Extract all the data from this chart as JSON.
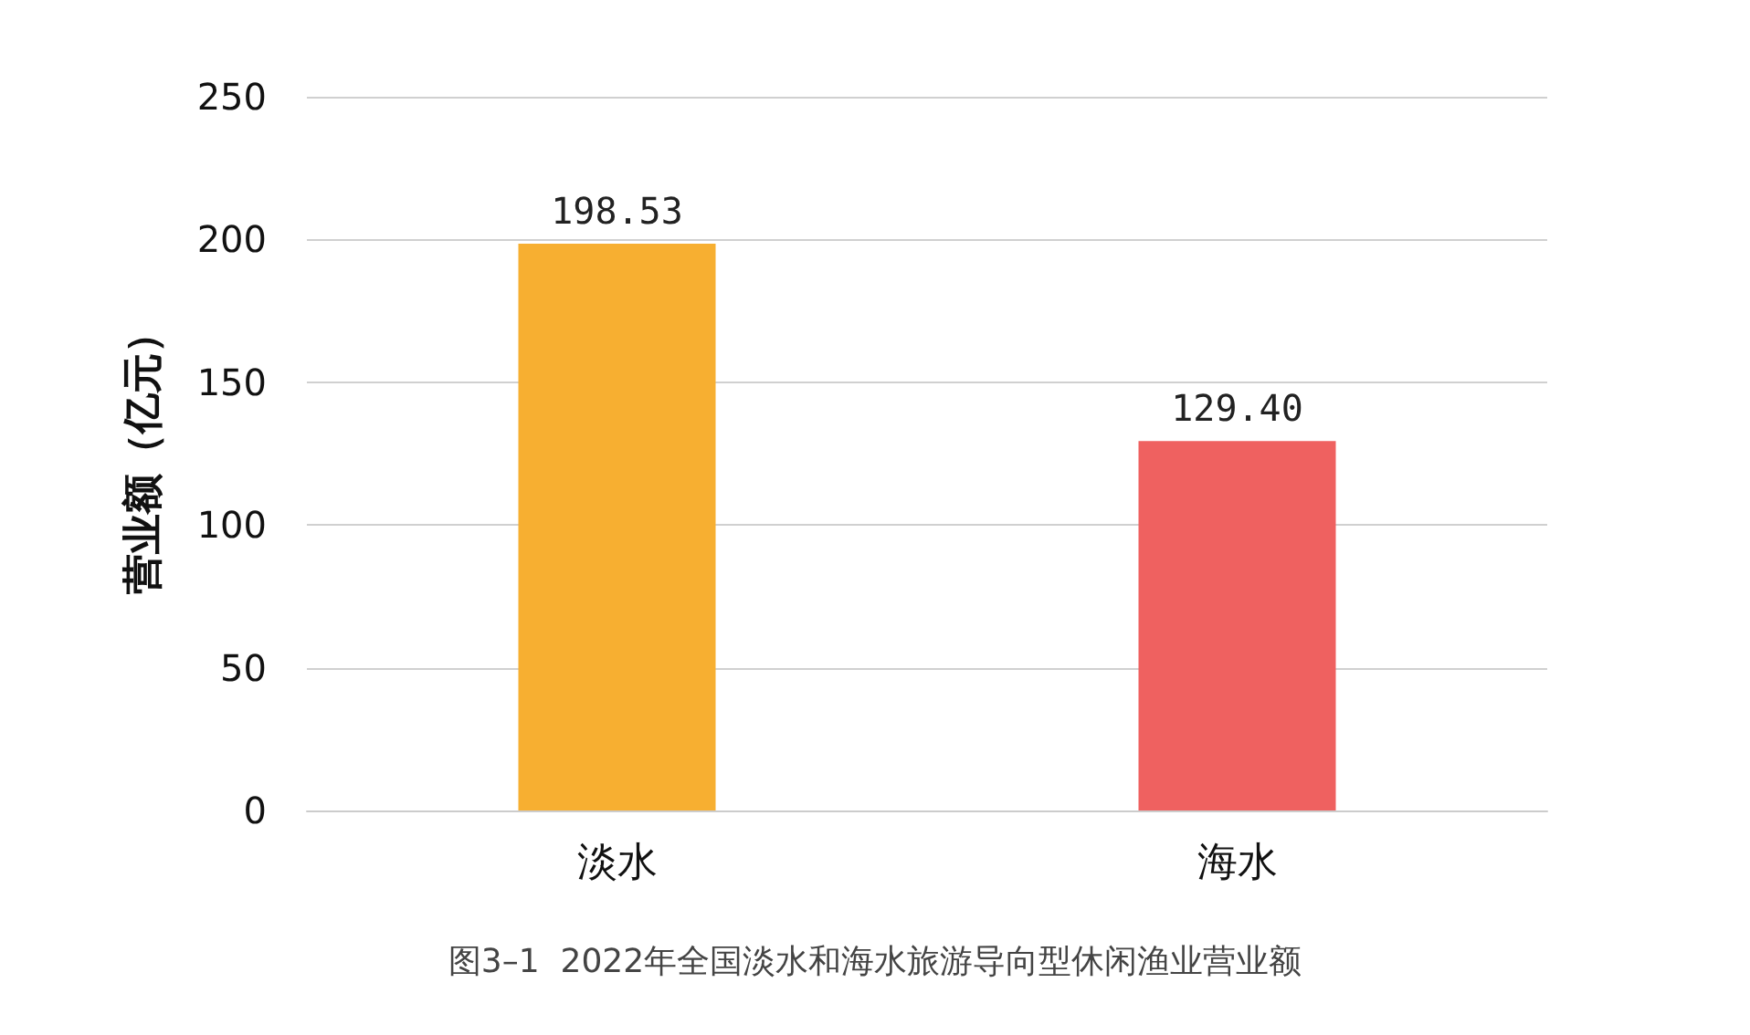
{
  "chart_data": {
    "type": "bar",
    "title": "图3–1  2022年全国淡水和海水旅游导向型休闲渔业营业额",
    "ylabel": "营业额（亿元）",
    "categories": [
      "淡水",
      "海水"
    ],
    "values": [
      198.53,
      129.4
    ],
    "colors": [
      "#f7af31",
      "#ef6160"
    ],
    "value_labels": [
      "198.53",
      "129.40"
    ],
    "ylim": [
      0,
      250
    ],
    "yticks": [
      0,
      50,
      100,
      150,
      200,
      250
    ],
    "grid": "y"
  }
}
